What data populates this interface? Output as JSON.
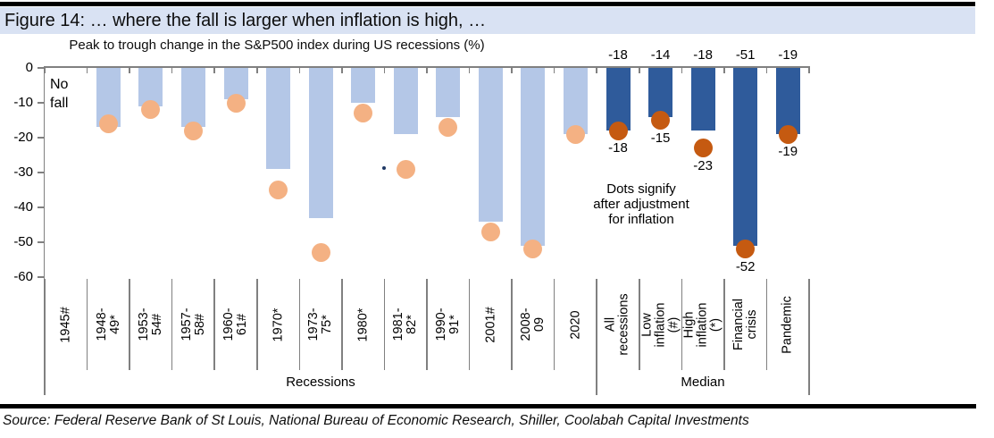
{
  "header": {
    "title": "Figure 14: … where the fall is larger when inflation is high, …"
  },
  "chart_data": {
    "type": "bar",
    "subtitle": "Peak to trough change in the S&P500 index during US recessions (%)",
    "ylim": [
      -60,
      0
    ],
    "ytick_labels": [
      "0",
      "-10",
      "-20",
      "-30",
      "-40",
      "-50",
      "-60"
    ],
    "group_labels": [
      "Recessions",
      "Median"
    ],
    "no_fall_lines": [
      "No",
      "fall"
    ],
    "legend_note_lines": [
      "Dots signify",
      "after adjustment",
      "for inflation"
    ],
    "series_meaning": {
      "bars": "Peak to trough change in the S&P500 index (%)",
      "dots": "Change after adjustment for inflation (%)"
    },
    "categories": [
      {
        "label": "1945#",
        "group": "recessions",
        "bar": null,
        "dot": null
      },
      {
        "label": "1948-49*",
        "group": "recessions",
        "bar": -17,
        "dot": -16
      },
      {
        "label": "1953-54#",
        "group": "recessions",
        "bar": -11,
        "dot": -12
      },
      {
        "label": "1957-58#",
        "group": "recessions",
        "bar": -17,
        "dot": -18
      },
      {
        "label": "1960-61#",
        "group": "recessions",
        "bar": -9,
        "dot": -10
      },
      {
        "label": "1970*",
        "group": "recessions",
        "bar": -29,
        "dot": -35
      },
      {
        "label": "1973-75*",
        "group": "recessions",
        "bar": -43,
        "dot": -53
      },
      {
        "label": "1980*",
        "group": "recessions",
        "bar": -10,
        "dot": -13
      },
      {
        "label": "1981-82*",
        "group": "recessions",
        "bar": -19,
        "dot": -29
      },
      {
        "label": "1990-91*",
        "group": "recessions",
        "bar": -14,
        "dot": -17
      },
      {
        "label": "2001#",
        "group": "recessions",
        "bar": -44,
        "dot": -47
      },
      {
        "label": "2008-09",
        "group": "recessions",
        "bar": -51,
        "dot": -52
      },
      {
        "label": "2020",
        "group": "recessions",
        "bar": -19,
        "dot": -19
      },
      {
        "label": "All\nrecessions",
        "group": "median",
        "bar": -18,
        "dot": -18,
        "bar_label": "-18",
        "dot_label": "-18"
      },
      {
        "label": "Low\ninflation (#)",
        "group": "median",
        "bar": -14,
        "dot": -15,
        "bar_label": "-14",
        "dot_label": "-15"
      },
      {
        "label": "High\ninflation (*)",
        "group": "median",
        "bar": -18,
        "dot": -23,
        "bar_label": "-18",
        "dot_label": "-23"
      },
      {
        "label": "Financial\ncrisis",
        "group": "median",
        "bar": -51,
        "dot": -52,
        "bar_label": "-51",
        "dot_label": "-52"
      },
      {
        "label": "Pandemic",
        "group": "median",
        "bar": -19,
        "dot": -19,
        "bar_label": "-19",
        "dot_label": "-19"
      }
    ]
  },
  "colors": {
    "recession_bar": "#b4c7e7",
    "median_bar": "#2f5b9b",
    "recession_dot": "#f4b183",
    "median_dot": "#c55a11",
    "title_highlight": "#d9e2f3",
    "axis": "#808080",
    "rule": "#000000"
  },
  "footer": {
    "source": "Source: Federal Reserve Bank of St Louis, National Bureau of Economic Research, Shiller, Coolabah Capital Investments"
  }
}
